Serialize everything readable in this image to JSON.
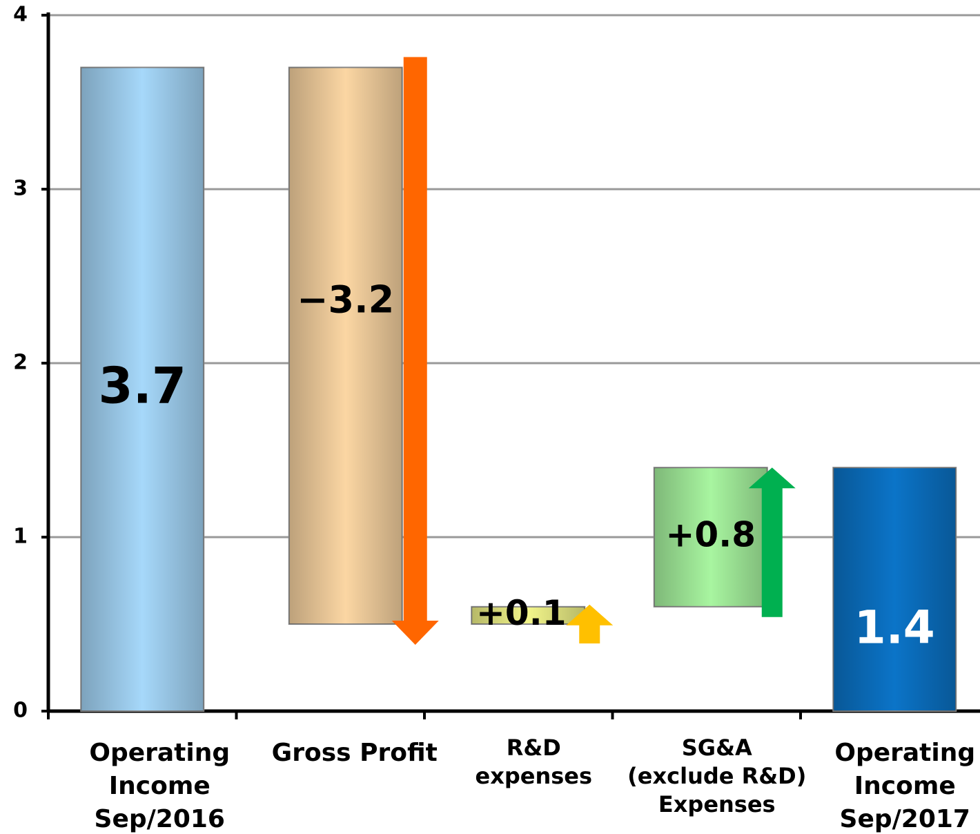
{
  "chart_data": {
    "type": "waterfall",
    "categories": [
      [
        "Operating",
        "Income",
        "Sep/2016"
      ],
      [
        "Gross Profit"
      ],
      [
        "R&D",
        "expenses"
      ],
      [
        "SG&A",
        "(exclude R&D)",
        "Expenses"
      ],
      [
        "Operating",
        "Income",
        "Sep/2017"
      ]
    ],
    "values": [
      3.7,
      -3.2,
      0.1,
      0.8,
      1.4
    ],
    "value_labels": [
      "3.7",
      "−3.2",
      "+0.1",
      "+0.8",
      "1.4"
    ],
    "totals": [
      true,
      false,
      false,
      false,
      true
    ],
    "colors": [
      "#a6d8fa",
      "#fbd6a3",
      "#f2f58a",
      "#a8f5a0",
      "#0b74c8"
    ],
    "arrow_colors": [
      null,
      "#ff6600",
      "#ffc000",
      "#00b050",
      null
    ],
    "ylim": [
      0,
      4
    ],
    "yticks": [
      0,
      1,
      2,
      3,
      4
    ],
    "grid": true
  }
}
